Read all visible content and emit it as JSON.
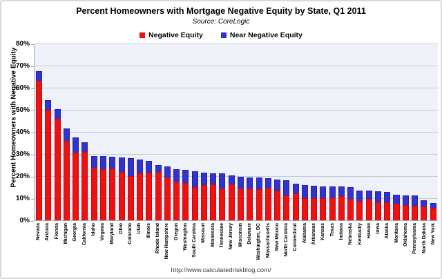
{
  "header": {
    "title": "Percent Homeowners with Mortgage Negative Equity by State, Q1 2011",
    "source": "Source: CoreLogic"
  },
  "legend": {
    "items": [
      {
        "label": "Negative Equity",
        "color": "#ee1111"
      },
      {
        "label": "Near Negative Equity",
        "color": "#3333cc"
      }
    ]
  },
  "footer": {
    "url": "http://www.calculatedriskblog.com/"
  },
  "chart_data": {
    "type": "bar",
    "stacked": true,
    "title": "Percent Homeowners with Mortgage Negative Equity by State, Q1 2011",
    "subtitle": "Source: CoreLogic",
    "xlabel": "",
    "ylabel": "Percent Homeowners with Negative Equity",
    "ylim": [
      0,
      80
    ],
    "ytick_step": 10,
    "ytick_suffix": "%",
    "grid": true,
    "legend_position": "top",
    "plot_bg": "#eef1f8",
    "categories": [
      "Nevada",
      "Arizona",
      "Florida",
      "Michigan",
      "Georgia",
      "California",
      "Idaho",
      "Virginia",
      "Maryland",
      "Ohio",
      "Colorado",
      "Utah",
      "Illinois",
      "Rhode Island",
      "New Hampshire",
      "Oregon",
      "Washington",
      "South Carolina",
      "Missouri",
      "Minnesota",
      "Tennessee",
      "New Jersey",
      "Wisconsin",
      "Delaware",
      "Washington, DC",
      "Massachusetts",
      "New Mexico",
      "North Carolina",
      "Connecticut",
      "Alabama",
      "Arkansas",
      "Kansas",
      "Texas",
      "Indiana",
      "Nebraska",
      "Kentucky",
      "Hawaii",
      "Iowa",
      "Alaska",
      "Montana",
      "Oklahoma",
      "Pennsylvania",
      "North Dakota",
      "New York"
    ],
    "series": [
      {
        "name": "Negative Equity",
        "color": "#ee1111",
        "edge": "#c40b0b",
        "values": [
          63,
          50,
          46,
          36,
          30.5,
          31,
          23.8,
          23,
          23.5,
          22,
          20,
          21.3,
          21.5,
          22,
          19.5,
          17.6,
          16.9,
          15,
          16,
          16.3,
          14.3,
          16.3,
          14.3,
          14.3,
          14,
          14.6,
          13.5,
          11.2,
          12.3,
          9.9,
          10,
          10,
          10.3,
          10.8,
          9.6,
          8.8,
          9.6,
          8.2,
          8.2,
          7.5,
          6.9,
          6.5,
          6.1,
          5.6
        ]
      },
      {
        "name": "Near Negative Equity",
        "color": "#3333cc",
        "edge": "#2424a8",
        "values": [
          4.5,
          4.5,
          4.2,
          5.5,
          7,
          4.3,
          5.3,
          6,
          5.3,
          6.4,
          8,
          6.3,
          5.5,
          3.1,
          4.9,
          5.6,
          5.9,
          7.1,
          5.6,
          5,
          7,
          4.1,
          5.4,
          5.1,
          5.4,
          4.6,
          5,
          6.8,
          4.2,
          6,
          5.5,
          5.3,
          5,
          4.5,
          5.4,
          4.6,
          3.8,
          4.9,
          4.7,
          4.2,
          4.2,
          4.6,
          2.9,
          2.3
        ]
      }
    ]
  }
}
